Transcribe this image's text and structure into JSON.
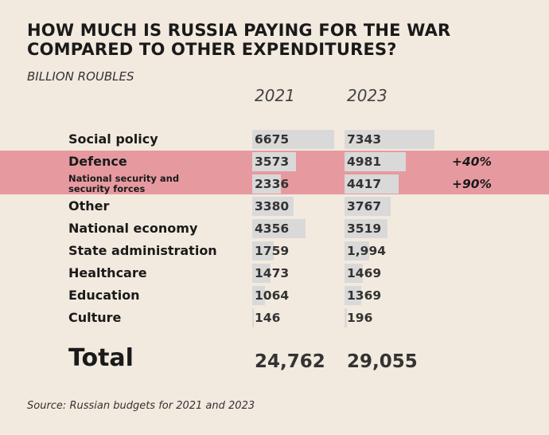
{
  "chart_data": {
    "type": "bar",
    "title": "HOW MUCH IS RUSSIA PAYING FOR THE WAR COMPARED TO OTHER EXPENDITURES?",
    "unit": "BILLION ROUBLES",
    "years": [
      "2021",
      "2023"
    ],
    "highlight_color": "#e69aa0",
    "bar_color": "#d9d9d9",
    "rows": [
      {
        "label": "Social policy",
        "v2021": 6675,
        "v2023": 7343,
        "t2021": "6675",
        "t2023": "7343"
      },
      {
        "label": "Defence",
        "v2021": 3573,
        "v2023": 4981,
        "t2021": "3573",
        "t2023": "4981",
        "change": "+40%",
        "highlight": true
      },
      {
        "label": "National security and security forces",
        "v2021": 2336,
        "v2023": 4417,
        "t2021": "2336",
        "t2023": "4417",
        "change": "+90%",
        "highlight": true
      },
      {
        "label": "Other",
        "v2021": 3380,
        "v2023": 3767,
        "t2021": "3380",
        "t2023": "3767"
      },
      {
        "label": "National economy",
        "v2021": 4356,
        "v2023": 3519,
        "t2021": "4356",
        "t2023": "3519"
      },
      {
        "label": "State administration",
        "v2021": 1759,
        "v2023": 1994,
        "t2021": "1759",
        "t2023": "1,994"
      },
      {
        "label": "Healthcare",
        "v2021": 1473,
        "v2023": 1469,
        "t2021": "1473",
        "t2023": "1469"
      },
      {
        "label": "Education",
        "v2021": 1064,
        "v2023": 1369,
        "t2021": "1064",
        "t2023": "1369"
      },
      {
        "label": "Culture",
        "v2021": 146,
        "v2023": 196,
        "t2021": "146",
        "t2023": "196"
      }
    ],
    "total_label": "Total",
    "total_2021": "24,762",
    "total_2023": "29,055",
    "source": "Source: Russian budgets for 2021 and 2023"
  }
}
